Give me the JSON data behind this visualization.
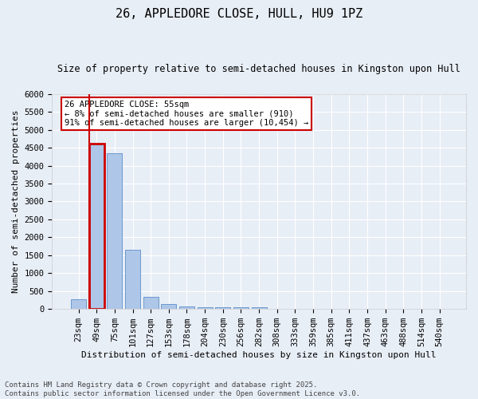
{
  "title": "26, APPLEDORE CLOSE, HULL, HU9 1PZ",
  "subtitle": "Size of property relative to semi-detached houses in Kingston upon Hull",
  "xlabel": "Distribution of semi-detached houses by size in Kingston upon Hull",
  "ylabel": "Number of semi-detached properties",
  "categories": [
    "23sqm",
    "49sqm",
    "75sqm",
    "101sqm",
    "127sqm",
    "153sqm",
    "178sqm",
    "204sqm",
    "230sqm",
    "256sqm",
    "282sqm",
    "308sqm",
    "333sqm",
    "359sqm",
    "385sqm",
    "411sqm",
    "437sqm",
    "463sqm",
    "488sqm",
    "514sqm",
    "540sqm"
  ],
  "values": [
    280,
    4620,
    4350,
    1650,
    330,
    130,
    75,
    50,
    40,
    50,
    40,
    0,
    0,
    0,
    0,
    0,
    0,
    0,
    0,
    0,
    0
  ],
  "bar_color": "#aec6e8",
  "bar_edge_color": "#5b8fc9",
  "highlight_bar_index": 1,
  "highlight_color": "#cc0000",
  "annotation_text": "26 APPLEDORE CLOSE: 55sqm\n← 8% of semi-detached houses are smaller (910)\n91% of semi-detached houses are larger (10,454) →",
  "annotation_box_color": "#cc0000",
  "ylim": [
    0,
    6000
  ],
  "yticks": [
    0,
    500,
    1000,
    1500,
    2000,
    2500,
    3000,
    3500,
    4000,
    4500,
    5000,
    5500,
    6000
  ],
  "background_color": "#e8eef6",
  "grid_color": "#ffffff",
  "footer": "Contains HM Land Registry data © Crown copyright and database right 2025.\nContains public sector information licensed under the Open Government Licence v3.0.",
  "title_fontsize": 11,
  "subtitle_fontsize": 8.5,
  "axis_label_fontsize": 8,
  "tick_fontsize": 7.5,
  "annotation_fontsize": 7.5,
  "footer_fontsize": 6.5
}
